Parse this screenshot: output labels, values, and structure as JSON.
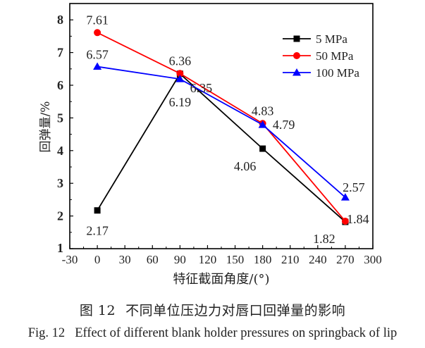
{
  "chart_data": {
    "type": "line",
    "xlabel": "特征截面角度/(°)",
    "ylabel": "回弹量/%",
    "xlim": [
      -30,
      300
    ],
    "ylim": [
      1,
      8.5
    ],
    "xticks": [
      -30,
      0,
      30,
      60,
      90,
      120,
      150,
      180,
      210,
      240,
      270,
      300
    ],
    "yticks": [
      1,
      2,
      3,
      4,
      5,
      6,
      7,
      8
    ],
    "grid": false,
    "legend": "top-right",
    "x": [
      0,
      90,
      180,
      270
    ],
    "series": [
      {
        "name": "5 MPa",
        "color": "#000000",
        "marker": "square",
        "values": [
          2.17,
          6.35,
          4.06,
          1.82
        ],
        "labels": [
          "2.17",
          "6.35",
          "4.06",
          "1.82"
        ]
      },
      {
        "name": "50 MPa",
        "color": "#ff0000",
        "marker": "circle",
        "values": [
          7.61,
          6.36,
          4.83,
          1.84
        ],
        "labels": [
          "7.61",
          "6.36",
          "4.83",
          "1.84"
        ]
      },
      {
        "name": "100 MPa",
        "color": "#0000ff",
        "marker": "triangle",
        "values": [
          6.57,
          6.19,
          4.79,
          2.57
        ],
        "labels": [
          "6.57",
          "6.19",
          "4.79",
          "2.57"
        ]
      }
    ]
  },
  "caption": {
    "cn_number": "图 12",
    "cn_text": "不同单位压边力对唇口回弹量的影响",
    "en_number": "Fig. 12",
    "en_text": "Effect of different blank holder pressures on springback of lip"
  }
}
